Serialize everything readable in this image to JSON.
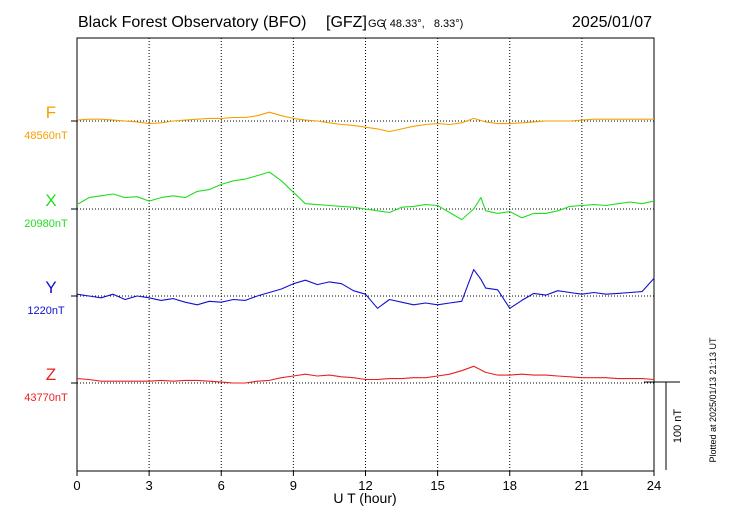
{
  "chart_data": {
    "type": "line",
    "title": "Black Forest Observatory (BFO)",
    "institute": "[GFZ]",
    "coords_prefix": "GG",
    "coords": "( 48.33°,   8.33°)",
    "date": "2025/01/07",
    "xlabel": "U T (hour)",
    "xlim": [
      0,
      24
    ],
    "xticks": [
      "0",
      "3",
      "6",
      "9",
      "12",
      "15",
      "18",
      "21",
      "24"
    ],
    "grid": true,
    "scale_bar_label": "100 nT",
    "scale_bar_nT": 100,
    "plotted_note": "Plotted at 2025/01/13 21:13 UT",
    "series": [
      {
        "name": "F",
        "baseline_label": "48560nT",
        "baseline_nT": 48560,
        "color": "#f5a000",
        "x": [
          0,
          0.5,
          1,
          1.5,
          2,
          2.5,
          3,
          3.5,
          4,
          4.5,
          5,
          5.5,
          6,
          6.5,
          7,
          7.5,
          8,
          8.5,
          9,
          9.5,
          10,
          10.5,
          11,
          11.5,
          12,
          12.5,
          13,
          13.5,
          14,
          14.5,
          15,
          15.5,
          16,
          16.5,
          17,
          17.5,
          18,
          18.5,
          19,
          19.5,
          20,
          20.5,
          21,
          21.5,
          22,
          22.5,
          23,
          23.5,
          24
        ],
        "values": [
          48561,
          48562,
          48562,
          48561,
          48560,
          48559,
          48557,
          48558,
          48560,
          48561,
          48562,
          48563,
          48563,
          48564,
          48564,
          48566,
          48570,
          48566,
          48563,
          48561,
          48560,
          48558,
          48556,
          48555,
          48553,
          48551,
          48548,
          48551,
          48554,
          48556,
          48557,
          48556,
          48558,
          48563,
          48559,
          48557,
          48557,
          48558,
          48559,
          48560,
          48560,
          48560,
          48561,
          48562,
          48562,
          48562,
          48562,
          48562,
          48562
        ]
      },
      {
        "name": "X",
        "baseline_label": "20980nT",
        "baseline_nT": 20980,
        "color": "#22dd22",
        "x": [
          0,
          0.5,
          1,
          1.5,
          2,
          2.5,
          3,
          3.5,
          4,
          4.5,
          5,
          5.5,
          6,
          6.5,
          7,
          7.5,
          8,
          8.5,
          9,
          9.5,
          10,
          10.5,
          11,
          11.5,
          12,
          12.5,
          13,
          13.5,
          14,
          14.5,
          15,
          15.5,
          16,
          16.5,
          16.8,
          17,
          17.5,
          18,
          18.5,
          19,
          19.5,
          20,
          20.5,
          21,
          21.5,
          22,
          22.5,
          23,
          23.5,
          24
        ],
        "values": [
          20985,
          20993,
          20995,
          20997,
          20993,
          20994,
          20989,
          20993,
          20995,
          20993,
          21000,
          21002,
          21008,
          21012,
          21014,
          21018,
          21022,
          21012,
          20999,
          20986,
          20985,
          20984,
          20983,
          20982,
          20980,
          20978,
          20976,
          20982,
          20983,
          20985,
          20984,
          20976,
          20968,
          20980,
          20993,
          20978,
          20975,
          20977,
          20970,
          20975,
          20975,
          20978,
          20983,
          20984,
          20985,
          20984,
          20986,
          20988,
          20986,
          20989
        ]
      },
      {
        "name": "Y",
        "baseline_label": "1220nT",
        "baseline_nT": 1220,
        "color": "#1010d0",
        "x": [
          0,
          0.5,
          1,
          1.5,
          2,
          2.5,
          3,
          3.5,
          4,
          4.5,
          5,
          5.5,
          6,
          6.5,
          7,
          7.5,
          8,
          8.5,
          9,
          9.5,
          10,
          10.5,
          11,
          11.5,
          12,
          12.5,
          13,
          13.5,
          14,
          14.5,
          15,
          15.5,
          16,
          16.5,
          16.8,
          17,
          17.5,
          18,
          18.5,
          19,
          19.5,
          20,
          20.5,
          21,
          21.5,
          22,
          22.5,
          23,
          23.5,
          24
        ],
        "values": [
          1222,
          1220,
          1218,
          1222,
          1216,
          1220,
          1218,
          1215,
          1217,
          1213,
          1210,
          1214,
          1213,
          1216,
          1215,
          1220,
          1224,
          1228,
          1234,
          1238,
          1233,
          1236,
          1234,
          1226,
          1222,
          1206,
          1216,
          1213,
          1210,
          1212,
          1210,
          1212,
          1214,
          1250,
          1239,
          1229,
          1227,
          1206,
          1215,
          1223,
          1221,
          1226,
          1224,
          1222,
          1224,
          1222,
          1223,
          1224,
          1225,
          1240
        ]
      },
      {
        "name": "Z",
        "baseline_label": "43770nT",
        "baseline_nT": 43770,
        "color": "#e82020",
        "x": [
          0,
          0.5,
          1,
          1.5,
          2,
          2.5,
          3,
          3.5,
          4,
          4.5,
          5,
          5.5,
          6,
          6.5,
          7,
          7.5,
          8,
          8.5,
          9,
          9.5,
          10,
          10.5,
          11,
          11.5,
          12,
          12.5,
          13,
          13.5,
          14,
          14.5,
          15,
          15.5,
          16,
          16.5,
          17,
          17.5,
          18,
          18.5,
          19,
          19.5,
          20,
          20.5,
          21,
          21.5,
          22,
          22.5,
          23,
          23.5,
          24
        ],
        "values": [
          43775,
          43774,
          43772,
          43772,
          43772,
          43772,
          43772,
          43773,
          43772,
          43773,
          43773,
          43772,
          43771,
          43770,
          43770,
          43772,
          43773,
          43776,
          43778,
          43780,
          43778,
          43779,
          43777,
          43776,
          43774,
          43774,
          43775,
          43775,
          43776,
          43776,
          43778,
          43780,
          43784,
          43789,
          43782,
          43779,
          43779,
          43780,
          43779,
          43779,
          43778,
          43777,
          43776,
          43776,
          43776,
          43775,
          43775,
          43775,
          43774
        ]
      }
    ]
  }
}
